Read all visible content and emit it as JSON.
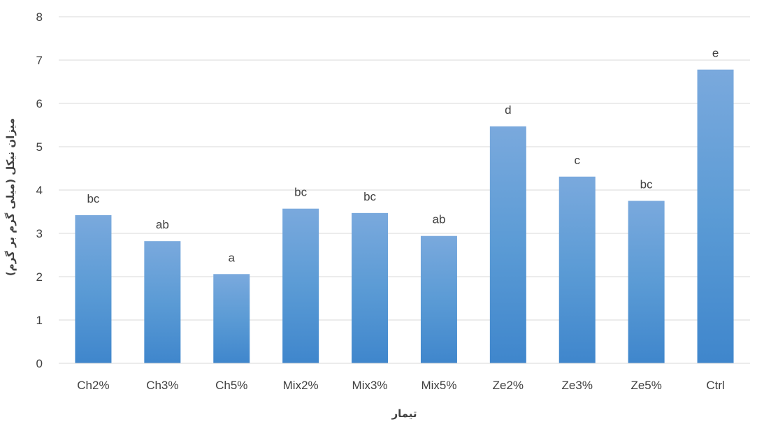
{
  "chart_data": {
    "type": "bar",
    "categories": [
      "Ch2%",
      "Ch3%",
      "Ch5%",
      "Mix2%",
      "Mix3%",
      "Mix5%",
      "Ze2%",
      "Ze3%",
      "Ze5%",
      "Ctrl"
    ],
    "values": [
      3.42,
      2.82,
      2.06,
      3.57,
      3.47,
      2.94,
      5.47,
      4.31,
      3.75,
      6.78
    ],
    "data_labels": [
      "bc",
      "ab",
      "a",
      "bc",
      "bc",
      "ab",
      "d",
      "c",
      "bc",
      "e"
    ],
    "xlabel": "تیمار",
    "ylabel": "میزان نیکل (میلی گرم بر گرم)",
    "ylim": [
      0,
      8
    ],
    "yticks": [
      "0",
      "1",
      "2",
      "3",
      "4",
      "5",
      "6",
      "7",
      "8"
    ],
    "grid": true,
    "legend": "none",
    "colors": {
      "bar_top": "#7aa9dd",
      "bar_mid": "#5b9bd5",
      "bar_bottom": "#3f86cc",
      "grid": "#d9d9d9",
      "text": "#404040"
    }
  }
}
